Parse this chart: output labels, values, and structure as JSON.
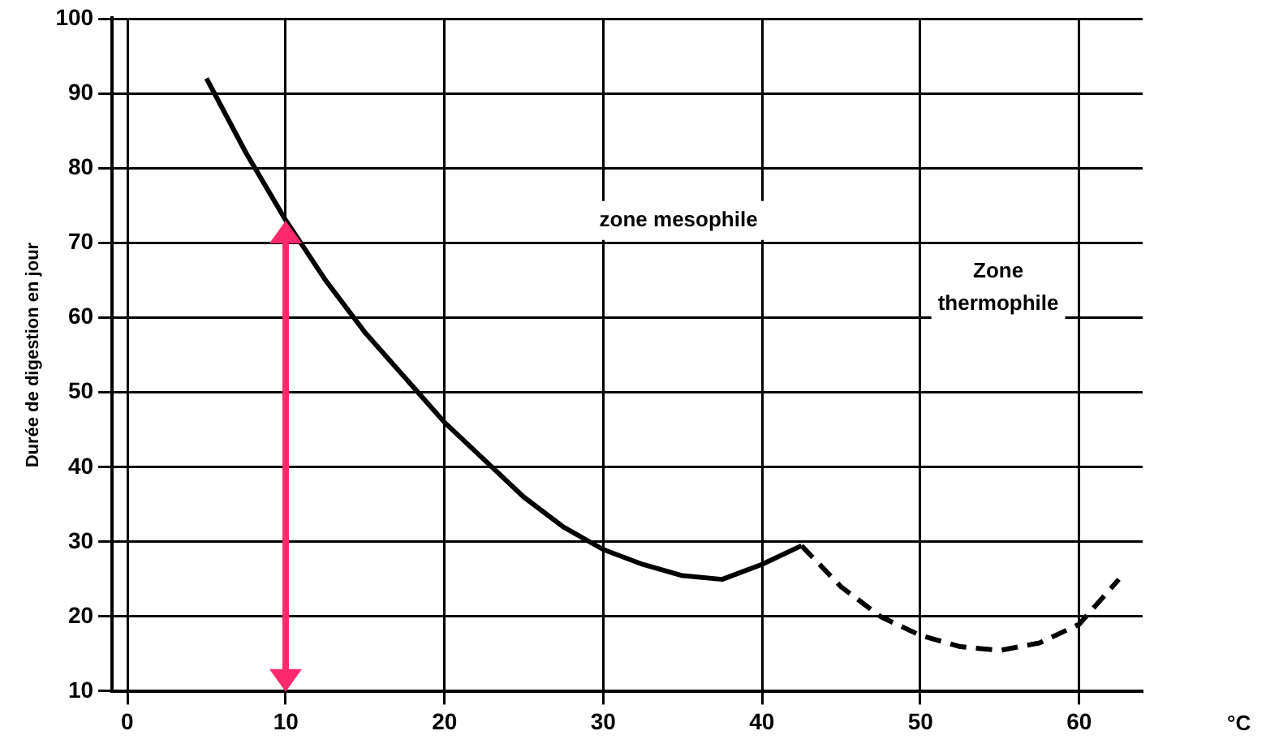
{
  "chart_data": {
    "type": "line",
    "ylabel": "Durée de digestion en jour",
    "xlabel": "°C",
    "series": [
      {
        "color": "#000000",
        "line_style": "solid",
        "x": [
          5,
          7.5,
          10,
          12.5,
          15,
          17.5,
          20,
          22.5,
          25,
          27.5,
          30,
          32.5,
          35,
          37.5,
          40,
          42.5
        ],
        "values": [
          92,
          82,
          73,
          65,
          58,
          52,
          46,
          41,
          36,
          32,
          29,
          27,
          25.5,
          25,
          27,
          29.5
        ]
      },
      {
        "color": "#000000",
        "line_style": "dashed",
        "x": [
          42.5,
          45,
          47.5,
          50,
          52.5,
          55,
          57.5,
          60,
          62.5
        ],
        "values": [
          29.5,
          24,
          20,
          17.5,
          16,
          15.5,
          16.5,
          19,
          25
        ]
      }
    ],
    "xlim": [
      -1,
      64
    ],
    "xticks": [
      0,
      10,
      20,
      30,
      40,
      50,
      60
    ],
    "ylim": [
      10,
      100
    ],
    "yticks": [
      10,
      20,
      30,
      40,
      50,
      60,
      70,
      80,
      90,
      100
    ],
    "grid": true,
    "legend": false,
    "marker": "none",
    "annotations": [
      "zone mesophile",
      "Zone\nthermophile"
    ]
  }
}
